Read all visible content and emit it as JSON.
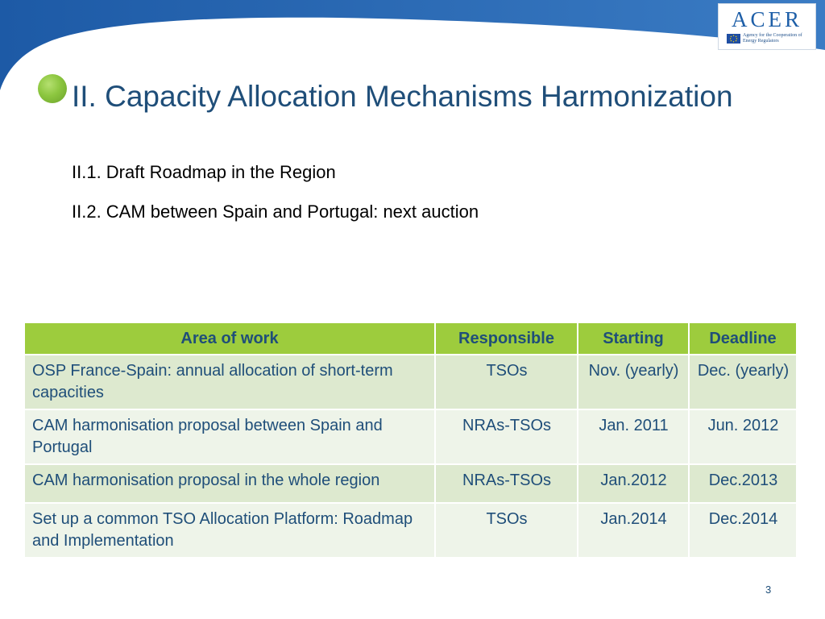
{
  "colors": {
    "header_blue": "#2a69b5",
    "title_blue": "#1f4e79",
    "bullet_green": "#8cc63f",
    "table_header_green": "#9dcc3d",
    "row_band_dark": "#dde9cf",
    "row_band_light": "#eef4e9"
  },
  "logo": {
    "word": "ACER",
    "caption": "Agency for the Cooperation of Energy Regulators"
  },
  "slide": {
    "title": "II. Capacity Allocation Mechanisms Harmonization",
    "subitems": [
      "II.1. Draft Roadmap in the Region",
      "II.2.  CAM between Spain and Portugal: next auction"
    ],
    "page_number": "3"
  },
  "table": {
    "headers": [
      "Area of work",
      "Responsible",
      "Starting",
      "Deadline"
    ],
    "rows": [
      [
        "OSP France-Spain: annual allocation of short-term capacities",
        "TSOs",
        "Nov. (yearly)",
        "Dec. (yearly)"
      ],
      [
        "CAM harmonisation proposal between Spain and Portugal",
        "NRAs-TSOs",
        "Jan. 2011",
        "Jun. 2012"
      ],
      [
        "CAM harmonisation proposal in the whole region",
        "NRAs-TSOs",
        "Jan.2012",
        "Dec.2013"
      ],
      [
        "Set up a common TSO Allocation Platform: Roadmap and Implementation",
        "TSOs",
        "Jan.2014",
        "Dec.2014"
      ]
    ]
  }
}
